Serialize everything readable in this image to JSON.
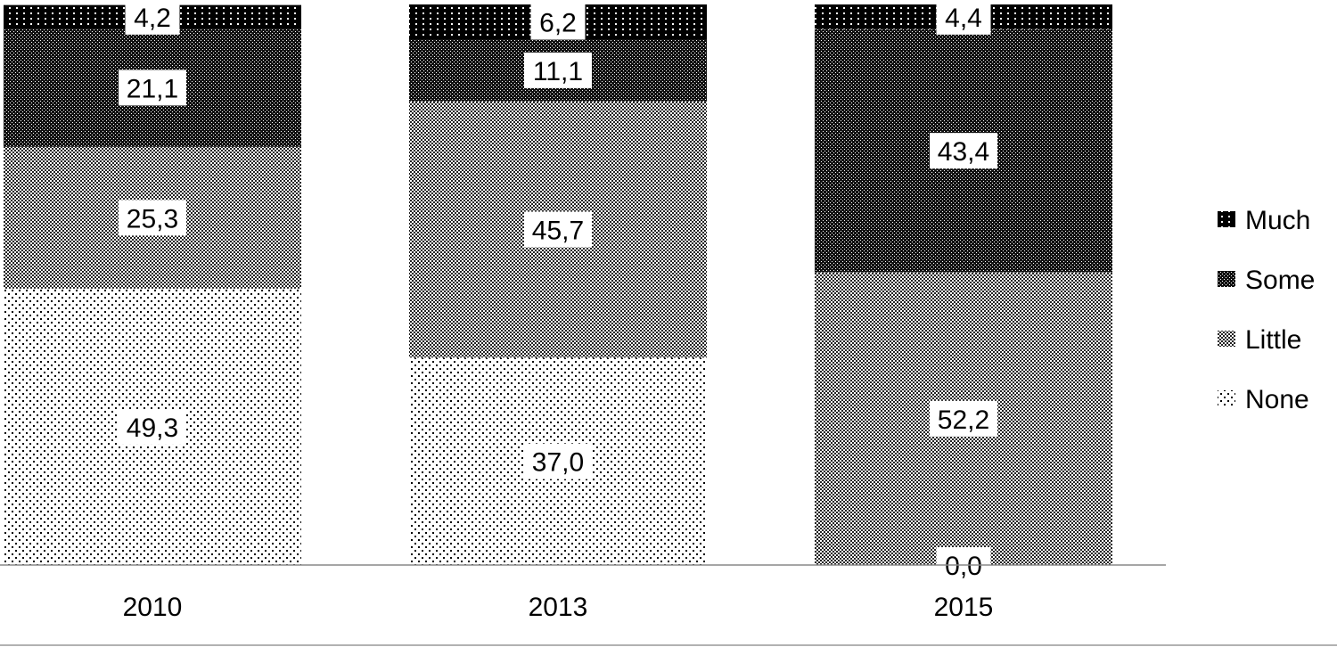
{
  "chart_data": {
    "type": "bar",
    "stacked": true,
    "categories": [
      "2010",
      "2013",
      "2015"
    ],
    "series": [
      {
        "name": "None",
        "values": [
          49.3,
          37.0,
          0.0
        ],
        "labels": [
          "49,3",
          "37,0",
          "0,0"
        ],
        "pattern": "dots-sparse"
      },
      {
        "name": "Little",
        "values": [
          25.3,
          45.7,
          52.2
        ],
        "labels": [
          "25,3",
          "45,7",
          "52,2"
        ],
        "pattern": "dots-medium"
      },
      {
        "name": "Some",
        "values": [
          21.1,
          11.1,
          43.4
        ],
        "labels": [
          "21,1",
          "11,1",
          "43,4"
        ],
        "pattern": "dots-dense"
      },
      {
        "name": "Much",
        "values": [
          4.2,
          6.2,
          4.4
        ],
        "labels": [
          "4,2",
          "6,2",
          "4,4"
        ],
        "pattern": "black-dotted"
      }
    ],
    "legend": {
      "position": "right",
      "order": [
        "Much",
        "Some",
        "Little",
        "None"
      ]
    },
    "grid": false,
    "title": "",
    "xlabel": "",
    "ylabel": "",
    "ylim": [
      0,
      100
    ]
  }
}
